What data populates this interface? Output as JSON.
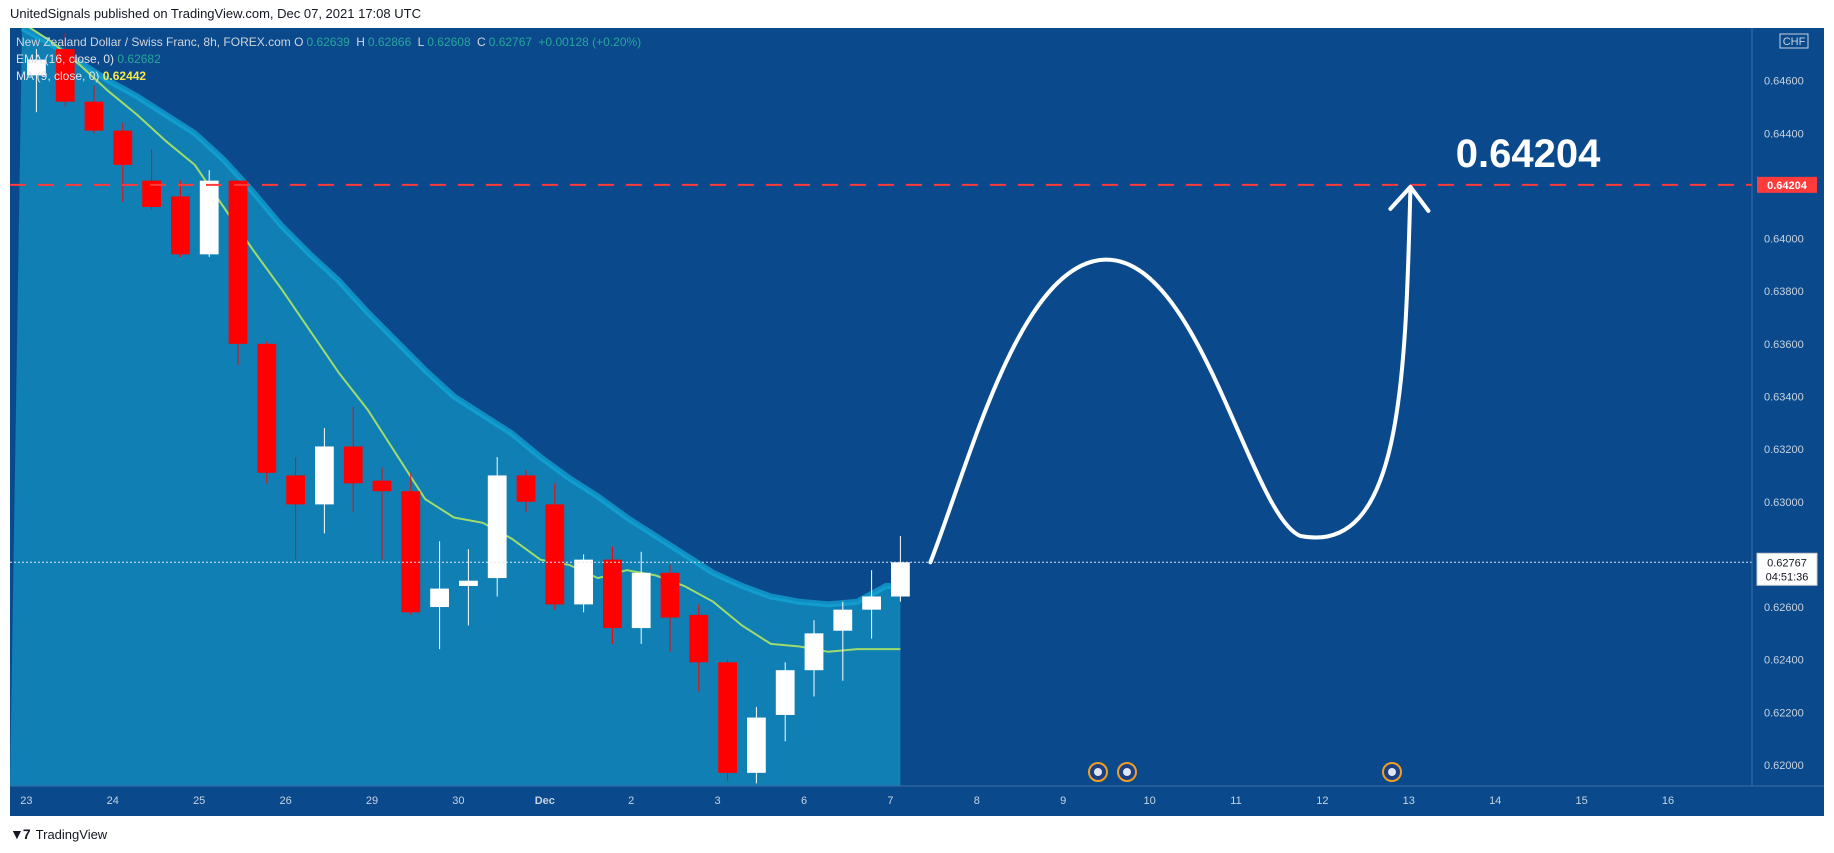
{
  "header": {
    "publisher_line": "UnitedSignals published on TradingView.com, Dec 07, 2021 17:08 UTC"
  },
  "legend": {
    "symbol_line": "New Zealand Dollar / Swiss Franc, 8h, FOREX.com",
    "ohlc": {
      "o_label": "O",
      "o": "0.62639",
      "h_label": "H",
      "h": "0.62866",
      "l_label": "L",
      "l": "0.62608",
      "c_label": "C",
      "c": "0.62767",
      "change": "+0.00128 (+0.20%)"
    },
    "ema_label": "EMA (16, close, 0)",
    "ema_value": "0.62682",
    "ma_label": "MA (9, close, 0)",
    "ma_value": "0.62442"
  },
  "footer": {
    "brand": "TradingView"
  },
  "colors": {
    "background": "#0a4a8c",
    "shaded_band": "#0f7fb4",
    "band_edge": "#13a9d8",
    "up_candle": "#ffffff",
    "down_candle": "#ff0000",
    "ma_line": "#9fdc6e",
    "target_line": "#ff3b3b",
    "projection": "#ffffff"
  },
  "chart_data": {
    "type": "candlestick",
    "currency_label": "CHF",
    "target_level": 0.64204,
    "target_label": "0.64204",
    "last_price_label": "0.62767",
    "countdown_label": "04:51:36",
    "y_axis_ticks": [
      "0.64600",
      "0.64400",
      "0.64000",
      "0.63800",
      "0.63600",
      "0.63400",
      "0.63200",
      "0.63000",
      "0.62600",
      "0.62400",
      "0.62200",
      "0.62000"
    ],
    "y_tick_values": [
      0.646,
      0.644,
      0.64,
      0.638,
      0.636,
      0.634,
      0.632,
      0.63,
      0.626,
      0.624,
      0.622,
      0.62
    ],
    "ylim": [
      0.6192,
      0.648
    ],
    "x_axis_ticks": [
      "23",
      "24",
      "25",
      "26",
      "29",
      "30",
      "Dec",
      "2",
      "3",
      "6",
      "7",
      "8",
      "9",
      "10",
      "11",
      "12",
      "13",
      "14",
      "15",
      "16"
    ],
    "x_tick_bar_index": [
      0,
      3,
      6,
      9,
      12,
      15,
      18,
      21,
      24,
      27,
      30,
      33,
      36,
      39,
      42,
      45,
      48,
      51,
      54,
      57
    ],
    "candles": [
      {
        "o": 0.6462,
        "h": 0.6472,
        "l": 0.6448,
        "c": 0.6468
      },
      {
        "o": 0.6472,
        "h": 0.6478,
        "l": 0.645,
        "c": 0.6452
      },
      {
        "o": 0.6452,
        "h": 0.6458,
        "l": 0.644,
        "c": 0.6441
      },
      {
        "o": 0.6441,
        "h": 0.6444,
        "l": 0.6414,
        "c": 0.6428
      },
      {
        "o": 0.6422,
        "h": 0.6434,
        "l": 0.6411,
        "c": 0.6412
      },
      {
        "o": 0.6416,
        "h": 0.6422,
        "l": 0.6393,
        "c": 0.6394
      },
      {
        "o": 0.6394,
        "h": 0.6426,
        "l": 0.6393,
        "c": 0.6422
      },
      {
        "o": 0.6422,
        "h": 0.6422,
        "l": 0.6352,
        "c": 0.636
      },
      {
        "o": 0.636,
        "h": 0.6361,
        "l": 0.6307,
        "c": 0.6311
      },
      {
        "o": 0.631,
        "h": 0.6317,
        "l": 0.6278,
        "c": 0.6299
      },
      {
        "o": 0.6299,
        "h": 0.6328,
        "l": 0.6288,
        "c": 0.6321
      },
      {
        "o": 0.6321,
        "h": 0.6336,
        "l": 0.6296,
        "c": 0.6307
      },
      {
        "o": 0.6308,
        "h": 0.6313,
        "l": 0.6278,
        "c": 0.6304
      },
      {
        "o": 0.6304,
        "h": 0.6311,
        "l": 0.6257,
        "c": 0.6258
      },
      {
        "o": 0.626,
        "h": 0.6285,
        "l": 0.6244,
        "c": 0.6267
      },
      {
        "o": 0.6268,
        "h": 0.6282,
        "l": 0.6253,
        "c": 0.627
      },
      {
        "o": 0.6271,
        "h": 0.6317,
        "l": 0.6264,
        "c": 0.631
      },
      {
        "o": 0.631,
        "h": 0.6312,
        "l": 0.6296,
        "c": 0.63
      },
      {
        "o": 0.6299,
        "h": 0.6307,
        "l": 0.6259,
        "c": 0.6261
      },
      {
        "o": 0.6261,
        "h": 0.628,
        "l": 0.6258,
        "c": 0.6278
      },
      {
        "o": 0.6278,
        "h": 0.6283,
        "l": 0.6246,
        "c": 0.6252
      },
      {
        "o": 0.6252,
        "h": 0.6281,
        "l": 0.6246,
        "c": 0.6273
      },
      {
        "o": 0.6273,
        "h": 0.6276,
        "l": 0.6243,
        "c": 0.6256
      },
      {
        "o": 0.6257,
        "h": 0.6261,
        "l": 0.6228,
        "c": 0.6239
      },
      {
        "o": 0.6239,
        "h": 0.624,
        "l": 0.6194,
        "c": 0.6197
      },
      {
        "o": 0.6197,
        "h": 0.6222,
        "l": 0.6193,
        "c": 0.6218
      },
      {
        "o": 0.6219,
        "h": 0.6239,
        "l": 0.6209,
        "c": 0.6236
      },
      {
        "o": 0.6236,
        "h": 0.6255,
        "l": 0.6226,
        "c": 0.625
      },
      {
        "o": 0.6251,
        "h": 0.6262,
        "l": 0.6232,
        "c": 0.6259
      },
      {
        "o": 0.6259,
        "h": 0.6274,
        "l": 0.6248,
        "c": 0.6264
      },
      {
        "o": 0.6264,
        "h": 0.6287,
        "l": 0.6262,
        "c": 0.6277
      }
    ],
    "ema_16": [
      0.648,
      0.6474,
      0.6467,
      0.646,
      0.6454,
      0.6447,
      0.644,
      0.643,
      0.6418,
      0.6405,
      0.6394,
      0.6384,
      0.6372,
      0.6361,
      0.635,
      0.634,
      0.6333,
      0.6326,
      0.6317,
      0.6309,
      0.6302,
      0.6294,
      0.6287,
      0.628,
      0.6273,
      0.6268,
      0.6264,
      0.6262,
      0.6261,
      0.6262,
      0.6268
    ],
    "ma_9": [
      0.6482,
      0.6475,
      0.6466,
      0.6456,
      0.6447,
      0.6437,
      0.6428,
      0.6412,
      0.6396,
      0.6381,
      0.6365,
      0.6349,
      0.6335,
      0.6318,
      0.6301,
      0.6294,
      0.6292,
      0.6286,
      0.6278,
      0.6276,
      0.6271,
      0.6274,
      0.6272,
      0.6268,
      0.6262,
      0.6253,
      0.6246,
      0.6245,
      0.6243,
      0.6244,
      0.6244
    ]
  }
}
